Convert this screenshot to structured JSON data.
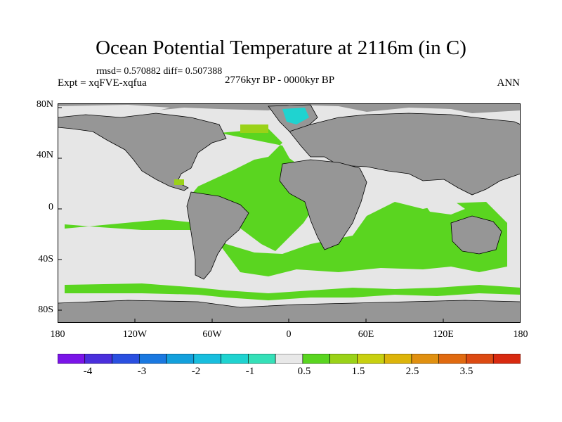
{
  "title": "Ocean Potential Temperature at 2116m (in C)",
  "stats": "rmsd= 0.570882  diff= 0.507388",
  "experiment": "Expt = xqFVE-xqfua",
  "period": "2776kyr BP - 0000kyr BP",
  "season": "ANN",
  "y_axis_labels": [
    "80N",
    "40N",
    "0",
    "40S",
    "80S"
  ],
  "x_axis_labels": [
    "180",
    "120W",
    "60W",
    "0",
    "60E",
    "120E",
    "180"
  ],
  "colorbar": {
    "colors": [
      "#7a14e8",
      "#4a2fdc",
      "#2a4fe0",
      "#1a78e0",
      "#13a0dc",
      "#18bede",
      "#1fd3d0",
      "#35e0b8",
      "#e8e8e8",
      "#5ad520",
      "#9ad218",
      "#c8d010",
      "#dcb40a",
      "#e09010",
      "#e06a10",
      "#dc4a12",
      "#d82a10"
    ],
    "labels": [
      "-4",
      "-3",
      "-2",
      "-1",
      "0.5",
      "1.5",
      "2.5",
      "3.5"
    ]
  },
  "map_colors": {
    "land": "#969696",
    "no_change": "#e6e6e6",
    "warm_small": "#5ad520",
    "warm_mid": "#9ad218",
    "cool_small": "#1fd3d0",
    "coast": "#000000"
  }
}
